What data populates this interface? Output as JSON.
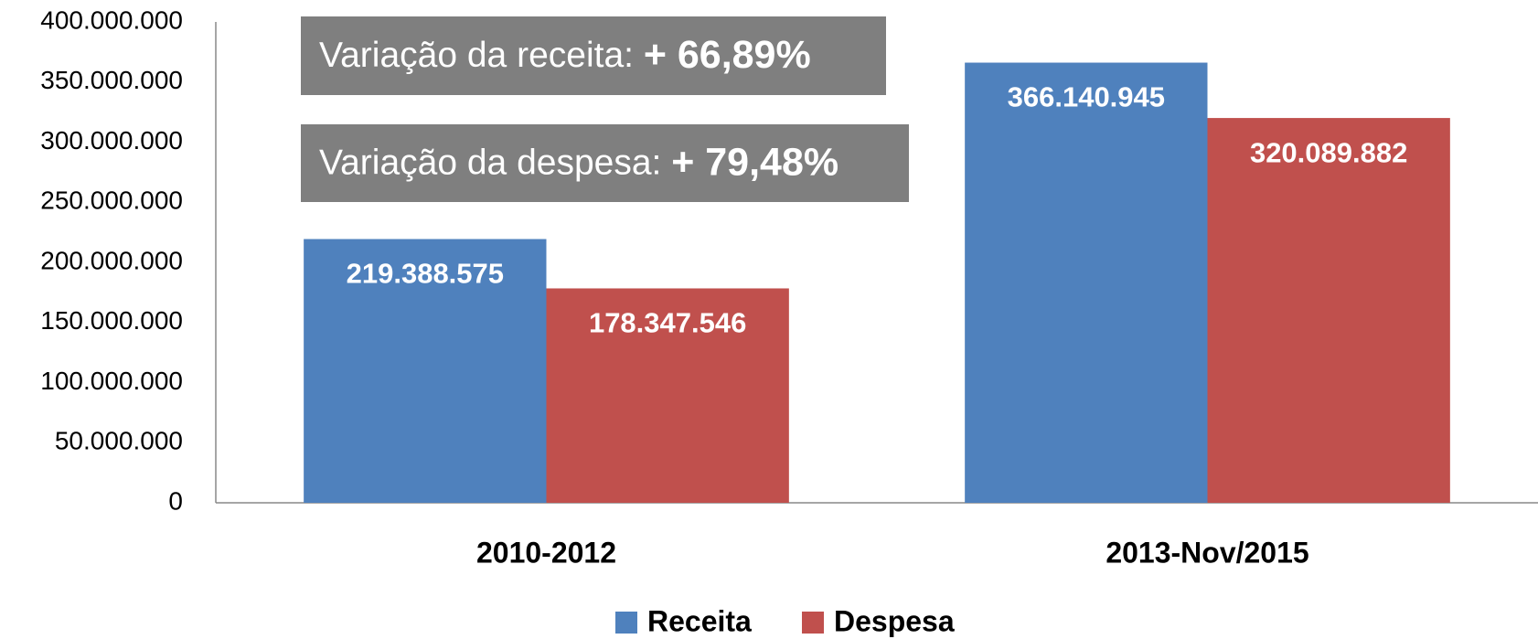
{
  "chart_data": {
    "type": "bar",
    "categories": [
      "2010-2012",
      "2013-Nov/2015"
    ],
    "series": [
      {
        "name": "Receita",
        "color": "#4f81bd",
        "values": [
          219388575,
          366140945
        ],
        "value_labels": [
          "219.388.575",
          "366.140.945"
        ]
      },
      {
        "name": "Despesa",
        "color": "#c0504d",
        "values": [
          178347546,
          320089882
        ],
        "value_labels": [
          "178.347.546",
          "320.089.882"
        ]
      }
    ],
    "ylim": [
      0,
      400000000
    ],
    "yticks": [
      0,
      {
        "value": 50000000,
        "label": "50.000.000"
      },
      {
        "value": 100000000,
        "label": "100.000.000"
      },
      {
        "value": 150000000,
        "label": "150.000.000"
      },
      {
        "value": 200000000,
        "label": "200.000.000"
      },
      {
        "value": 250000000,
        "label": "250.000.000"
      },
      {
        "value": 300000000,
        "label": "300.000.000"
      },
      {
        "value": 350000000,
        "label": "350.000.000"
      },
      {
        "value": 400000000,
        "label": "400.000.000"
      }
    ],
    "grid": false,
    "legend": "bottom",
    "annotations": [
      {
        "text": "Variação da receita: ",
        "highlight": "+ 66,89%",
        "color": "#7f7f7f"
      },
      {
        "text": "Variação da despesa: ",
        "highlight": "+ 79,48%",
        "color": "#7f7f7f"
      }
    ]
  }
}
